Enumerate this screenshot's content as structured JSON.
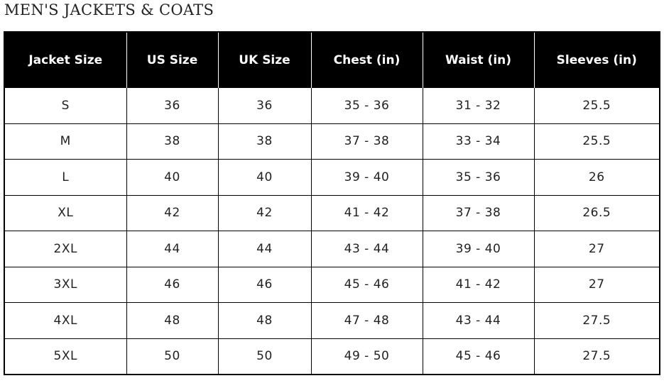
{
  "title": "MEN'S JACKETS & COATS",
  "headers": [
    "Jacket Size",
    "US Size",
    "UK Size",
    "Chest (in)",
    "Waist (in)",
    "Sleeves (in)"
  ],
  "rows": [
    [
      "S",
      "36",
      "36",
      "35 - 36",
      "31 - 32",
      "25.5"
    ],
    [
      "M",
      "38",
      "38",
      "37 - 38",
      "33 - 34",
      "25.5"
    ],
    [
      "L",
      "40",
      "40",
      "39 - 40",
      "35 - 36",
      "26"
    ],
    [
      "XL",
      "42",
      "42",
      "41 - 42",
      "37 - 38",
      "26.5"
    ],
    [
      "2XL",
      "44",
      "44",
      "43 - 44",
      "39 - 40",
      "27"
    ],
    [
      "3XL",
      "46",
      "46",
      "45 - 46",
      "41 - 42",
      "27"
    ],
    [
      "4XL",
      "48",
      "48",
      "47 - 48",
      "43 - 44",
      "27.5"
    ],
    [
      "5XL",
      "50",
      "50",
      "49 - 50",
      "45 - 46",
      "27.5"
    ]
  ],
  "colors": {
    "header_bg": "#000000",
    "header_text": "#ffffff"
  }
}
